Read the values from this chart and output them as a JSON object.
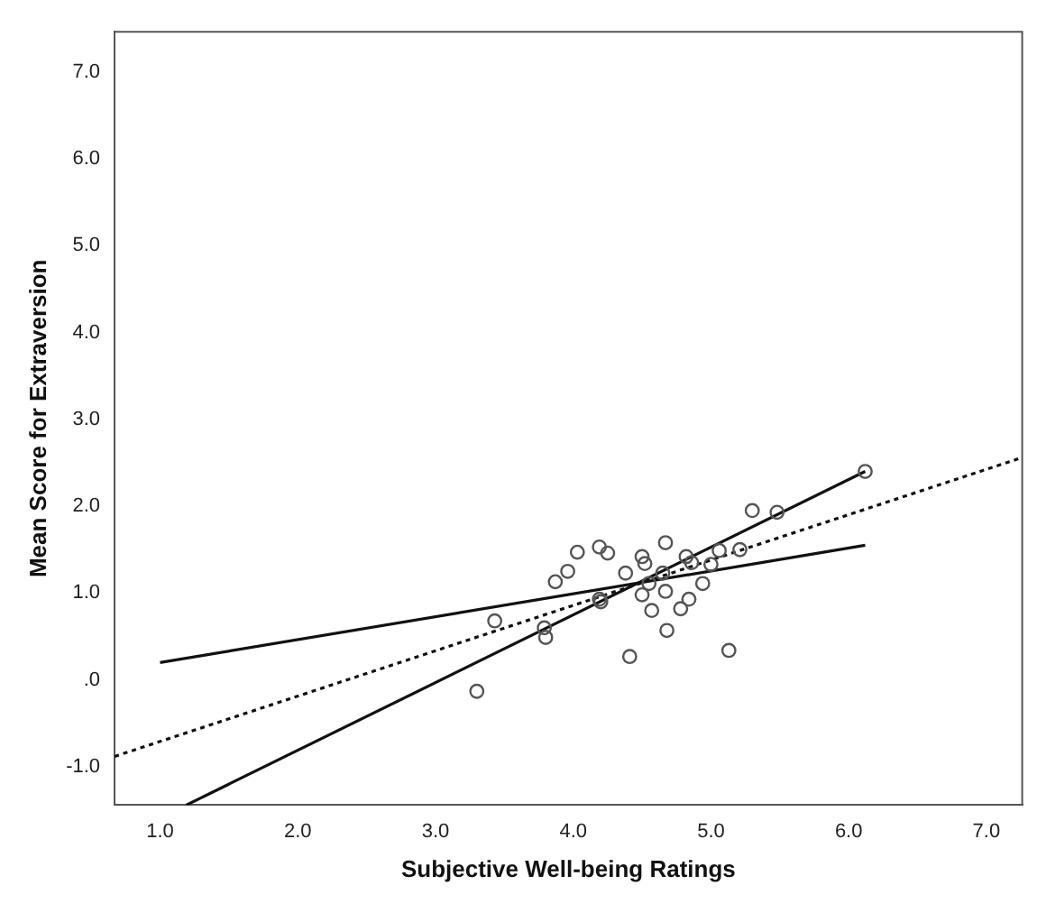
{
  "chart_data": {
    "type": "scatter",
    "xlabel": "Subjective Well-being Ratings",
    "ylabel": "Mean Score for Extraversion",
    "xlim": [
      0.67,
      7.26
    ],
    "ylim": [
      -1.44,
      7.46
    ],
    "xticks": [
      {
        "value": 1,
        "label": "1.0"
      },
      {
        "value": 2,
        "label": "2.0"
      },
      {
        "value": 3,
        "label": "3.0"
      },
      {
        "value": 4,
        "label": "4.0"
      },
      {
        "value": 5,
        "label": "5.0"
      },
      {
        "value": 6,
        "label": "6.0"
      },
      {
        "value": 7,
        "label": "7.0"
      }
    ],
    "yticks": [
      {
        "value": -1,
        "label": "-1.0"
      },
      {
        "value": 0,
        "label": ".0"
      },
      {
        "value": 1,
        "label": "1.0"
      },
      {
        "value": 2,
        "label": "2.0"
      },
      {
        "value": 3,
        "label": "3.0"
      },
      {
        "value": 4,
        "label": "4.0"
      },
      {
        "value": 5,
        "label": "5.0"
      },
      {
        "value": 6,
        "label": "6.0"
      },
      {
        "value": 7,
        "label": "7.0"
      }
    ],
    "grid": false,
    "legend": false,
    "series": [
      {
        "type": "scatter",
        "marker": "circle",
        "color": "#555555",
        "x": [
          3.3,
          3.43,
          3.79,
          3.8,
          3.87,
          3.96,
          4.03,
          4.19,
          4.25,
          4.19,
          4.2,
          4.38,
          4.41,
          4.5,
          4.52,
          4.5,
          4.55,
          4.57,
          4.65,
          4.67,
          4.67,
          4.68,
          4.78,
          4.82,
          4.84,
          4.86,
          4.94,
          5.0,
          5.06,
          5.13,
          5.21,
          5.3,
          5.48,
          6.12
        ],
        "values": [
          -0.13,
          0.68,
          0.6,
          0.49,
          1.13,
          1.25,
          1.47,
          1.53,
          1.46,
          0.93,
          0.9,
          1.23,
          0.27,
          1.42,
          1.34,
          0.98,
          1.11,
          0.8,
          1.23,
          1.58,
          1.02,
          0.57,
          0.82,
          1.42,
          0.93,
          1.35,
          1.11,
          1.33,
          1.49,
          0.34,
          1.5,
          1.95,
          1.93,
          2.4
        ]
      },
      {
        "type": "line",
        "marker": "none",
        "color": "#111111",
        "line_style": "solid",
        "x": [
          1.0,
          6.12
        ],
        "values": [
          0.2,
          1.55
        ]
      },
      {
        "type": "line",
        "marker": "none",
        "color": "#111111",
        "line_style": "solid",
        "x": [
          1.19,
          6.12
        ],
        "values": [
          -1.44,
          2.4
        ]
      },
      {
        "type": "line",
        "marker": "none",
        "color": "#111111",
        "line_style": "dotted",
        "x": [
          0.67,
          7.26
        ],
        "values": [
          -0.88,
          2.56
        ]
      }
    ]
  }
}
